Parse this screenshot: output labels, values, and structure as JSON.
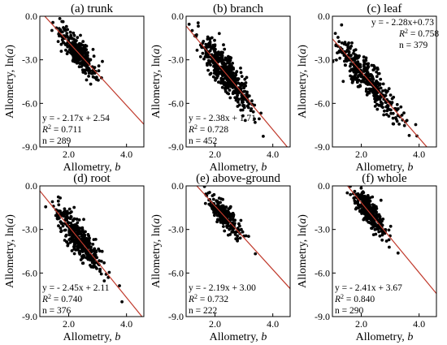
{
  "chart_data": [
    {
      "type": "scatter",
      "title": "(a) trunk",
      "xlabel": "Allometry, b",
      "ylabel": "Allometry, ln(a)",
      "xlim": [
        1.0,
        4.6
      ],
      "ylim": [
        -9.0,
        0.0
      ],
      "xticks": [
        "2.0",
        "4.0"
      ],
      "yticks": [
        "0.0",
        "-3.0",
        "-6.0",
        "-9.0"
      ],
      "fit": {
        "slope": -2.17,
        "intercept": 2.54
      },
      "annotation": {
        "equation": "y = - 2.17x + 2.54",
        "r2": "0.711",
        "n": "289"
      },
      "annotation_position": "bottom-left",
      "cloud": {
        "x_center": 2.3,
        "x_spread": 0.32,
        "resid_spread": 0.5,
        "count": 289
      }
    },
    {
      "type": "scatter",
      "title": "(b) branch",
      "xlabel": "Allometry, b",
      "ylabel": "",
      "xlim": [
        1.0,
        4.6
      ],
      "ylim": [
        -9.0,
        0.0
      ],
      "xticks": [
        "2.0",
        "4.0"
      ],
      "yticks": [
        "0.0",
        "-3.0",
        "-6.0",
        "-9.0"
      ],
      "fit": {
        "slope": -2.38,
        "intercept": 1.71
      },
      "annotation": {
        "equation": "y = - 2.38x + 1.71",
        "r2": "0.728",
        "n": "452"
      },
      "annotation_position": "bottom-left",
      "cloud": {
        "x_center": 2.35,
        "x_spread": 0.45,
        "resid_spread": 0.6,
        "count": 452
      }
    },
    {
      "type": "scatter",
      "title": "(c) leaf",
      "xlabel": "Allometry, b",
      "ylabel": "",
      "xlim": [
        1.0,
        4.6
      ],
      "ylim": [
        -9.0,
        0.0
      ],
      "xticks": [
        "2.0",
        "4.0"
      ],
      "yticks": [
        "0.0",
        "-3.0",
        "-6.0",
        "-9.0"
      ],
      "fit": {
        "slope": -2.28,
        "intercept": 0.73
      },
      "annotation": {
        "equation": "y = - 2.28x+0.73",
        "r2": "0.758",
        "n": "379"
      },
      "annotation_position": "top-right",
      "cloud": {
        "x_center": 2.2,
        "x_spread": 0.55,
        "resid_spread": 0.6,
        "count": 379
      }
    },
    {
      "type": "scatter",
      "title": "(d) root",
      "xlabel": "Allometry, b",
      "ylabel": "Allometry, ln(a)",
      "xlim": [
        1.0,
        4.6
      ],
      "ylim": [
        -9.0,
        0.0
      ],
      "xticks": [
        "2.0",
        "4.0"
      ],
      "yticks": [
        "0.0",
        "-3.0",
        "-6.0",
        "-9.0"
      ],
      "fit": {
        "slope": -2.45,
        "intercept": 2.11
      },
      "annotation": {
        "equation": "y = - 2.45x + 2.11",
        "r2": "0.740",
        "n": "376"
      },
      "annotation_position": "bottom-left",
      "cloud": {
        "x_center": 2.35,
        "x_spread": 0.42,
        "resid_spread": 0.6,
        "count": 376
      }
    },
    {
      "type": "scatter",
      "title": "(e) above-ground",
      "xlabel": "Allometry, b",
      "ylabel": "",
      "xlim": [
        1.0,
        4.6
      ],
      "ylim": [
        -9.0,
        0.0
      ],
      "xticks": [
        "2.0",
        "4.0"
      ],
      "yticks": [
        "0.0",
        "-3.0",
        "-6.0",
        "-9.0"
      ],
      "fit": {
        "slope": -2.19,
        "intercept": 3.0
      },
      "annotation": {
        "equation": "y = - 2.19x + 3.00",
        "r2": "0.732",
        "n": "222"
      },
      "annotation_position": "bottom-left",
      "cloud": {
        "x_center": 2.3,
        "x_spread": 0.28,
        "resid_spread": 0.45,
        "count": 222
      }
    },
    {
      "type": "scatter",
      "title": "(f) whole",
      "xlabel": "Allometry, b",
      "ylabel": "Allometry, ln(a)",
      "xlim": [
        1.0,
        4.6
      ],
      "ylim": [
        -9.0,
        0.0
      ],
      "xticks": [
        "2.0",
        "4.0"
      ],
      "yticks": [
        "0.0",
        "-3.0",
        "-6.0",
        "-9.0"
      ],
      "fit": {
        "slope": -2.41,
        "intercept": 3.67
      },
      "annotation": {
        "equation": "y = - 2.41x + 3.67",
        "r2": "0.840",
        "n": "290"
      },
      "annotation_position": "bottom-left",
      "cloud": {
        "x_center": 2.3,
        "x_spread": 0.3,
        "resid_spread": 0.45,
        "count": 290
      }
    }
  ],
  "colors": {
    "points": "#000000",
    "fit_line": "#c0392b",
    "axes": "#000000"
  }
}
